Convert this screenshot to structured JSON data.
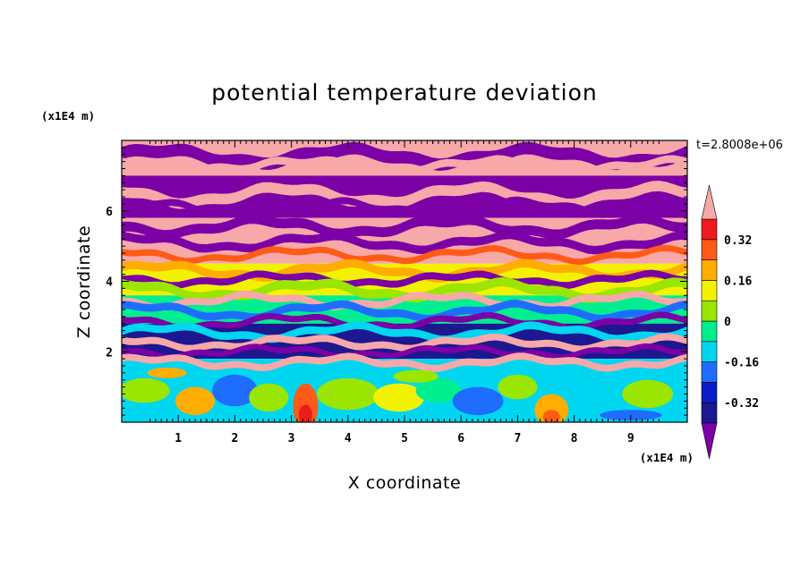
{
  "chart_data": {
    "type": "heatmap",
    "title": "potential temperature deviation",
    "xlabel": "X coordinate",
    "ylabel": "Z coordinate",
    "x_unit": "(x1E4 m)",
    "y_unit": "(x1E4 m)",
    "time_label": "t=2.8008e+06",
    "xlim": [
      0,
      10
    ],
    "ylim": [
      0,
      8
    ],
    "x_ticks": [
      "1",
      "2",
      "3",
      "4",
      "5",
      "6",
      "7",
      "8",
      "9"
    ],
    "y_ticks": [
      "2",
      "4",
      "6"
    ],
    "colorbar": {
      "levels": [
        -0.48,
        -0.4,
        -0.32,
        -0.24,
        -0.16,
        -0.08,
        0,
        0.08,
        0.16,
        0.24,
        0.32,
        0.4,
        0.48
      ],
      "colors": [
        "#7b00a6",
        "#1d1790",
        "#0a1cc8",
        "#1f6dff",
        "#00d6f0",
        "#00ee90",
        "#9ae600",
        "#f2f200",
        "#ffad00",
        "#ff5a18",
        "#ee1c1c",
        "#f7a8a8"
      ],
      "labels": [
        "0.32",
        "0.16",
        "0",
        "-0.16",
        "-0.32"
      ],
      "extend": "both"
    },
    "field_description_rows": [
      {
        "z_range": [
          7.2,
          8.0
        ],
        "dominant": "pink 0.48",
        "secondary": "purple -0.48"
      },
      {
        "z_range": [
          5.8,
          7.2
        ],
        "dominant": "purple -0.48",
        "secondary": "pink 0.48"
      },
      {
        "z_range": [
          4.5,
          5.8
        ],
        "dominant": "pink/purple bands",
        "secondary": "orange"
      },
      {
        "z_range": [
          2.8,
          4.5
        ],
        "dominant": "mixed green/yellow/orange",
        "secondary": "blue"
      },
      {
        "z_range": [
          1.8,
          2.8
        ],
        "dominant": "purple/blue/pink bands",
        "secondary": "cyan"
      },
      {
        "z_range": [
          0.0,
          1.8
        ],
        "dominant": "cyan/green",
        "secondary": "orange/red plumes"
      }
    ]
  }
}
